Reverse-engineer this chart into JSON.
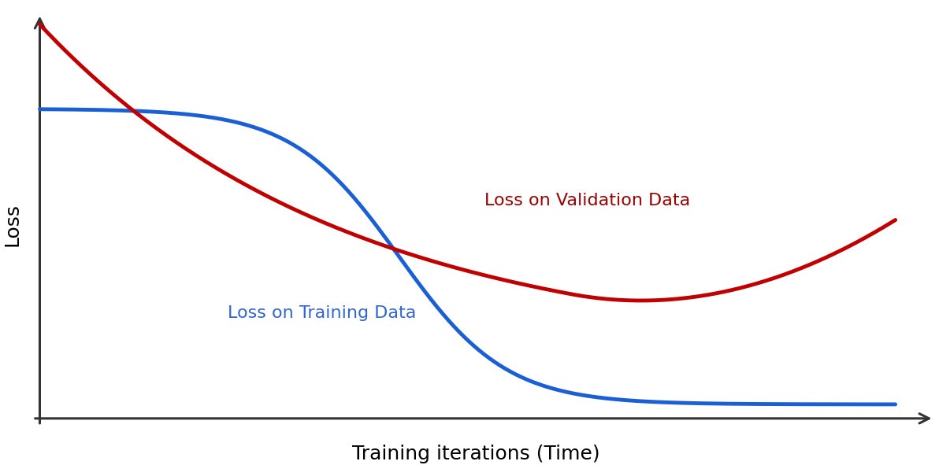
{
  "title": "",
  "xlabel": "Training iterations (Time)",
  "ylabel": "Loss",
  "xlabel_fontsize": 18,
  "ylabel_fontsize": 18,
  "background_color": "#ffffff",
  "training_color": "#1a5fd4",
  "validation_color": "#c00000",
  "line_width": 3.5,
  "label_training": "Loss on Training Data",
  "label_validation": "Loss on Validation Data",
  "label_fontsize": 16,
  "label_color_training": "#3366cc",
  "label_color_validation": "#9b0000"
}
